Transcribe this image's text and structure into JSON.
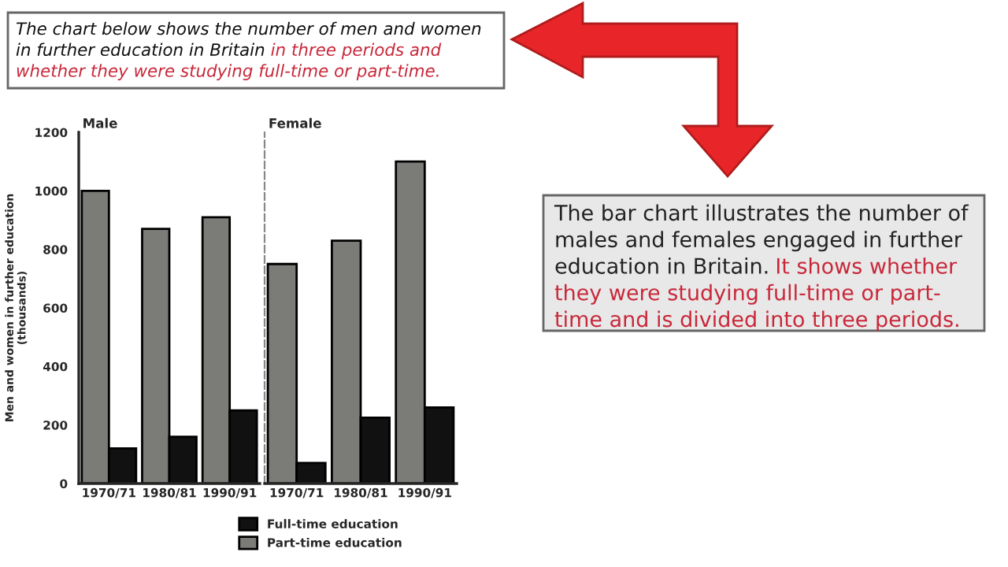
{
  "chart_data": [
    {
      "type": "bar",
      "title": "Male",
      "ylabel": "Men and women in further education\n(thousands)",
      "categories": [
        "1970/71",
        "1980/81",
        "1990/91"
      ],
      "series": [
        {
          "name": "Part-time education",
          "color": "#7b7c78",
          "values": [
            1000,
            870,
            910
          ]
        },
        {
          "name": "Full-time education",
          "color": "#111111",
          "values": [
            120,
            160,
            250
          ]
        }
      ],
      "ylim": [
        0,
        1200
      ],
      "yticks": [
        0,
        200,
        400,
        600,
        800,
        1000,
        1200
      ],
      "legend": "bottom",
      "grid": false,
      "annotations": [
        "The chart below shows the number of men and women\nin further education in Britain",
        "in three periods and\nwhether they were studying full-time or part-time.",
        "The bar chart illustrates the number of\nmales and females engaged in further\neducation in Britain.",
        "It shows whether\nthey were studying full-time or part-\ntime and is divided into three periods."
      ]
    },
    {
      "type": "bar",
      "title": "Female",
      "categories": [
        "1970/71",
        "1980/81",
        "1990/91"
      ],
      "series": [
        {
          "color": "#7b7c78",
          "values": [
            750,
            830,
            1100
          ]
        },
        {
          "color": "#111111",
          "values": [
            70,
            225,
            260
          ]
        }
      ],
      "ylim": [
        0,
        1200
      ],
      "yticks": [
        0,
        200,
        400,
        600,
        800,
        1000,
        1200
      ],
      "tick_labels": "x",
      "grid": false
    }
  ]
}
